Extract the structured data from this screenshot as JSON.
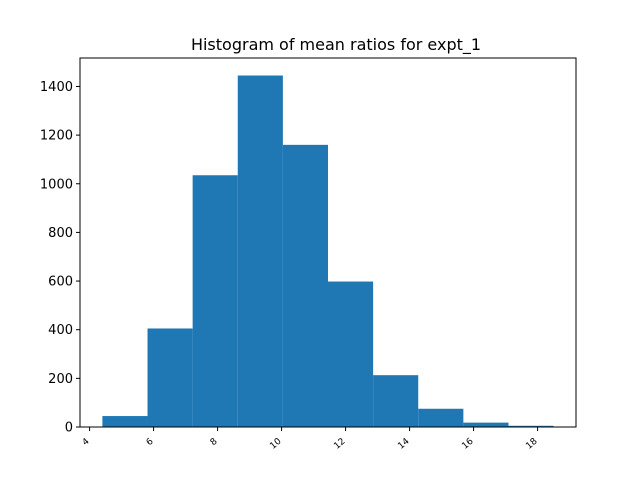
{
  "chart_data": {
    "type": "bar",
    "title": "Histogram of mean ratios for expt_1",
    "xlabel": "",
    "ylabel": "",
    "bin_edges": [
      4.4,
      5.81,
      7.22,
      8.63,
      10.04,
      11.45,
      12.86,
      14.27,
      15.68,
      17.09,
      18.5
    ],
    "values": [
      45,
      405,
      1035,
      1445,
      1160,
      598,
      213,
      75,
      18,
      5
    ],
    "xlim": [
      3.7,
      19.2
    ],
    "ylim": [
      0,
      1517
    ],
    "xticks": [
      4,
      6,
      8,
      10,
      12,
      14,
      16,
      18
    ],
    "xtick_labels": [
      "4",
      "6",
      "8",
      "10",
      "12",
      "14",
      "16",
      "18"
    ],
    "yticks": [
      0,
      200,
      400,
      600,
      800,
      1000,
      1200,
      1400
    ],
    "ytick_labels": [
      "0",
      "200",
      "400",
      "600",
      "800",
      "1000",
      "1200",
      "1400"
    ],
    "bar_color": "#1f77b4",
    "grid": false,
    "legend": "none"
  }
}
